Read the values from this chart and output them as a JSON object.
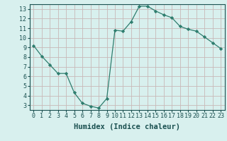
{
  "x": [
    0,
    1,
    2,
    3,
    4,
    5,
    6,
    7,
    8,
    9,
    10,
    11,
    12,
    13,
    14,
    15,
    16,
    17,
    18,
    19,
    20,
    21,
    22,
    23
  ],
  "y": [
    9.2,
    8.1,
    7.2,
    6.3,
    6.3,
    4.3,
    3.2,
    2.9,
    2.7,
    3.7,
    10.8,
    10.7,
    11.7,
    13.3,
    13.3,
    12.8,
    12.4,
    12.1,
    11.2,
    10.9,
    10.7,
    10.1,
    9.5,
    8.9
  ],
  "line_color": "#2e7d6e",
  "marker": "D",
  "marker_size": 2.2,
  "bg_color": "#d8f0ee",
  "grid_color_h": "#c8b8b8",
  "grid_color_v": "#c8b8b8",
  "xlabel": "Humidex (Indice chaleur)",
  "xlim": [
    -0.5,
    23.5
  ],
  "ylim": [
    2.5,
    13.5
  ],
  "yticks": [
    3,
    4,
    5,
    6,
    7,
    8,
    9,
    10,
    11,
    12,
    13
  ],
  "xticks": [
    0,
    1,
    2,
    3,
    4,
    5,
    6,
    7,
    8,
    9,
    10,
    11,
    12,
    13,
    14,
    15,
    16,
    17,
    18,
    19,
    20,
    21,
    22,
    23
  ],
  "tick_color": "#1a5050",
  "label_color": "#1a5050",
  "font_size": 6.0,
  "label_font_size": 7.5
}
